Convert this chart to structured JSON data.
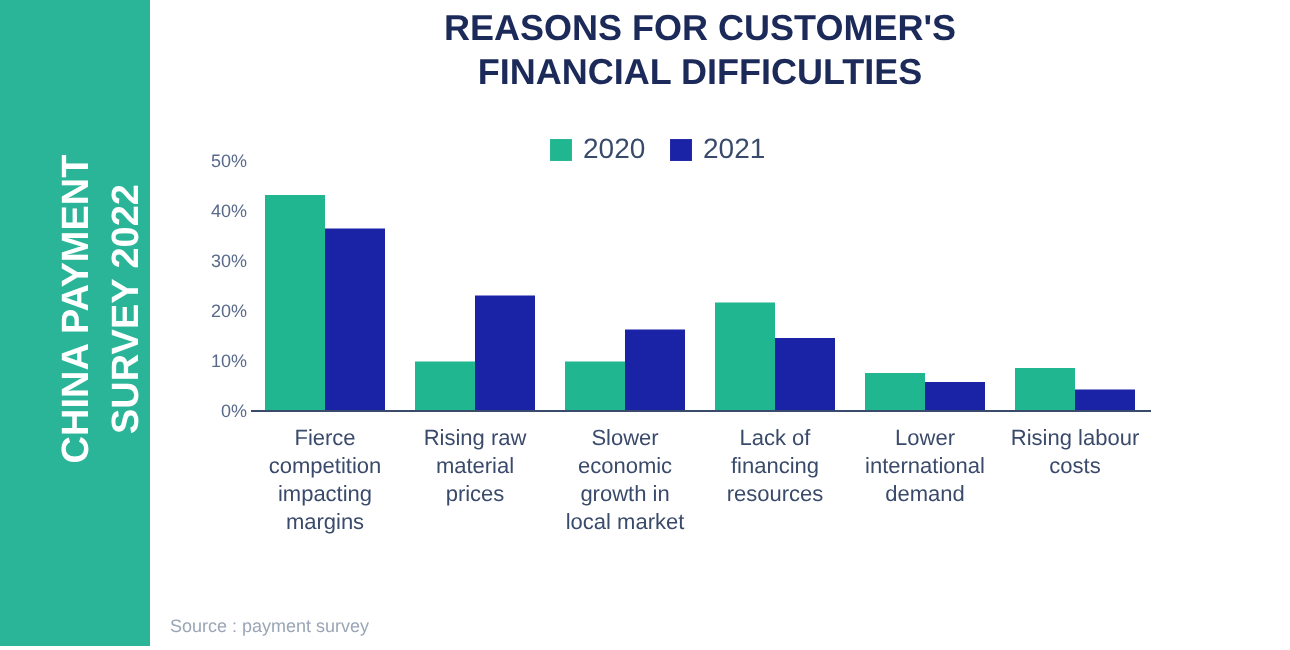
{
  "chart_data": {
    "type": "bar",
    "title": "REASONS FOR CUSTOMER'S FINANCIAL DIFFICULTIES",
    "categories": [
      "Fierce competition impacting margins",
      "Rising raw material prices",
      "Slower economic growth in local market",
      "Lack of financing resources",
      "Lower international demand",
      "Rising labour costs"
    ],
    "series": [
      {
        "name": "2020",
        "color": "#20b68f",
        "values": [
          43.0,
          9.7,
          9.7,
          21.5,
          7.4,
          8.4
        ]
      },
      {
        "name": "2021",
        "color": "#1a22a6",
        "values": [
          36.3,
          22.9,
          16.1,
          14.4,
          5.6,
          4.1
        ]
      }
    ],
    "ylim": [
      0,
      50
    ],
    "yticks": [
      {
        "value": 0,
        "label": "0%"
      },
      {
        "value": 10,
        "label": "10%"
      },
      {
        "value": 20,
        "label": "20%"
      },
      {
        "value": 30,
        "label": "30%"
      },
      {
        "value": 40,
        "label": "40%"
      },
      {
        "value": 50,
        "label": "50%"
      }
    ],
    "grid": false,
    "legend": "top",
    "annotations": [
      "CHINA PAYMENT SURVEY 2022",
      "Source : payment survey"
    ]
  }
}
